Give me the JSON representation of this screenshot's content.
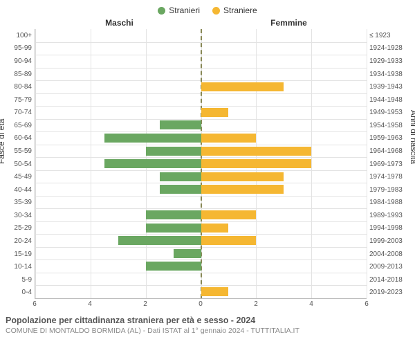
{
  "legend": {
    "male": {
      "label": "Stranieri",
      "color": "#6aa761"
    },
    "female": {
      "label": "Straniere",
      "color": "#f5b732"
    }
  },
  "headers": {
    "left": "Maschi",
    "right": "Femmine"
  },
  "yaxis_titles": {
    "left": "Fasce di età",
    "right": "Anni di nascita"
  },
  "chart": {
    "type": "population-pyramid",
    "xlim": 6,
    "xticks": [
      6,
      4,
      2,
      0,
      2,
      4,
      6
    ],
    "background_color": "#ffffff",
    "grid_color": "#e3e3e3",
    "centerline_color": "#888855",
    "bar_colors": {
      "male": "#6aa761",
      "female": "#f5b732"
    },
    "label_fontsize": 10,
    "rows": [
      {
        "age": "100+",
        "birth": "≤ 1923",
        "m": 0,
        "f": 0
      },
      {
        "age": "95-99",
        "birth": "1924-1928",
        "m": 0,
        "f": 0
      },
      {
        "age": "90-94",
        "birth": "1929-1933",
        "m": 0,
        "f": 0
      },
      {
        "age": "85-89",
        "birth": "1934-1938",
        "m": 0,
        "f": 0
      },
      {
        "age": "80-84",
        "birth": "1939-1943",
        "m": 0,
        "f": 3
      },
      {
        "age": "75-79",
        "birth": "1944-1948",
        "m": 0,
        "f": 0
      },
      {
        "age": "70-74",
        "birth": "1949-1953",
        "m": 0,
        "f": 1
      },
      {
        "age": "65-69",
        "birth": "1954-1958",
        "m": 1.5,
        "f": 0
      },
      {
        "age": "60-64",
        "birth": "1959-1963",
        "m": 3.5,
        "f": 2
      },
      {
        "age": "55-59",
        "birth": "1964-1968",
        "m": 2,
        "f": 4
      },
      {
        "age": "50-54",
        "birth": "1969-1973",
        "m": 3.5,
        "f": 4
      },
      {
        "age": "45-49",
        "birth": "1974-1978",
        "m": 1.5,
        "f": 3
      },
      {
        "age": "40-44",
        "birth": "1979-1983",
        "m": 1.5,
        "f": 3
      },
      {
        "age": "35-39",
        "birth": "1984-1988",
        "m": 0,
        "f": 0
      },
      {
        "age": "30-34",
        "birth": "1989-1993",
        "m": 2,
        "f": 2
      },
      {
        "age": "25-29",
        "birth": "1994-1998",
        "m": 2,
        "f": 1
      },
      {
        "age": "20-24",
        "birth": "1999-2003",
        "m": 3,
        "f": 2
      },
      {
        "age": "15-19",
        "birth": "2004-2008",
        "m": 1,
        "f": 0
      },
      {
        "age": "10-14",
        "birth": "2009-2013",
        "m": 2,
        "f": 0
      },
      {
        "age": "5-9",
        "birth": "2014-2018",
        "m": 0,
        "f": 0
      },
      {
        "age": "0-4",
        "birth": "2019-2023",
        "m": 0,
        "f": 1
      }
    ]
  },
  "caption": {
    "title": "Popolazione per cittadinanza straniera per età e sesso - 2024",
    "sub": "COMUNE DI MONTALDO BORMIDA (AL) - Dati ISTAT al 1° gennaio 2024 - TUTTITALIA.IT"
  }
}
